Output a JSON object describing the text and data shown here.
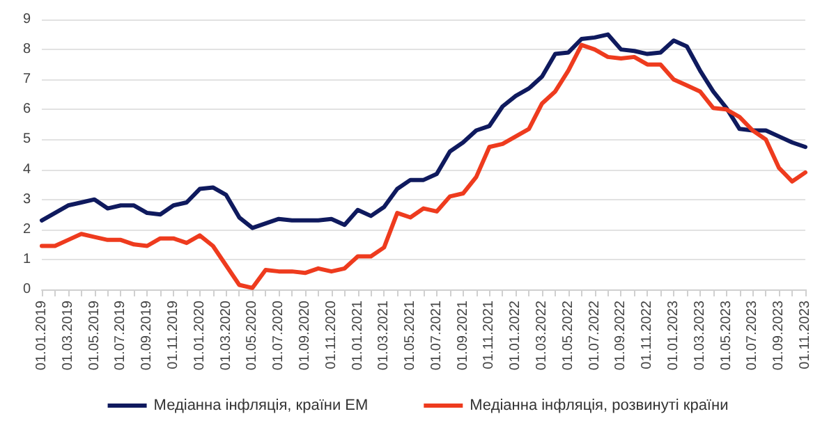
{
  "chart_data": {
    "type": "line",
    "categories": [
      "01.01.2019",
      null,
      "01.03.2019",
      null,
      "01.05.2019",
      null,
      "01.07.2019",
      null,
      "01.09.2019",
      null,
      "01.11.2019",
      null,
      "01.01.2020",
      null,
      "01.03.2020",
      null,
      "01.05.2020",
      null,
      "01.07.2020",
      null,
      "01.09.2020",
      null,
      "01.11.2020",
      null,
      "01.01.2021",
      null,
      "01.03.2021",
      null,
      "01.05.2021",
      null,
      "01.07.2021",
      null,
      "01.09.2021",
      null,
      "01.11.2021",
      null,
      "01.01.2022",
      null,
      "01.03.2022",
      null,
      "01.05.2022",
      null,
      "01.07.2022",
      null,
      "01.09.2022",
      null,
      "01.11.2022",
      null,
      "01.01.2023",
      null,
      "01.03.2023",
      null,
      "01.05.2023",
      null,
      "01.07.2023",
      null,
      "01.09.2023",
      null,
      "01.11.2023"
    ],
    "series": [
      {
        "name": "Медіанна інфляція, країни ЕМ",
        "color": "#0f1a5e",
        "values": [
          2.3,
          2.55,
          2.8,
          2.9,
          3.0,
          2.7,
          2.8,
          2.8,
          2.55,
          2.5,
          2.8,
          2.9,
          3.35,
          3.4,
          3.15,
          2.4,
          2.05,
          2.2,
          2.35,
          2.3,
          2.3,
          2.3,
          2.35,
          2.15,
          2.65,
          2.45,
          2.75,
          3.35,
          3.65,
          3.65,
          3.85,
          4.6,
          4.9,
          5.3,
          5.45,
          6.1,
          6.45,
          6.7,
          7.1,
          7.85,
          7.9,
          8.35,
          8.4,
          8.5,
          8.0,
          7.95,
          7.85,
          7.9,
          8.3,
          8.1,
          7.3,
          6.6,
          6.05,
          5.35,
          5.3,
          5.3,
          5.1,
          4.9,
          4.75
        ]
      },
      {
        "name": "Медіанна інфляція, розвинуті країни",
        "color": "#ee3b1e",
        "values": [
          1.45,
          1.45,
          1.65,
          1.85,
          1.75,
          1.65,
          1.65,
          1.5,
          1.45,
          1.7,
          1.7,
          1.55,
          1.8,
          1.45,
          0.8,
          0.15,
          0.05,
          0.65,
          0.6,
          0.6,
          0.55,
          0.7,
          0.6,
          0.7,
          1.1,
          1.1,
          1.4,
          2.55,
          2.4,
          2.7,
          2.6,
          3.1,
          3.2,
          3.75,
          4.75,
          4.85,
          5.1,
          5.35,
          6.2,
          6.6,
          7.3,
          8.15,
          8.0,
          7.75,
          7.7,
          7.75,
          7.5,
          7.5,
          7.0,
          6.8,
          6.6,
          6.05,
          6.0,
          5.75,
          5.3,
          5.0,
          4.05,
          3.6,
          3.9
        ]
      }
    ],
    "ylim": [
      0,
      9
    ],
    "yticks": [
      0,
      1,
      2,
      3,
      4,
      5,
      6,
      7,
      8,
      9
    ],
    "grid": "y",
    "legend": "bottom",
    "marker": "none",
    "line_style": "solid"
  }
}
